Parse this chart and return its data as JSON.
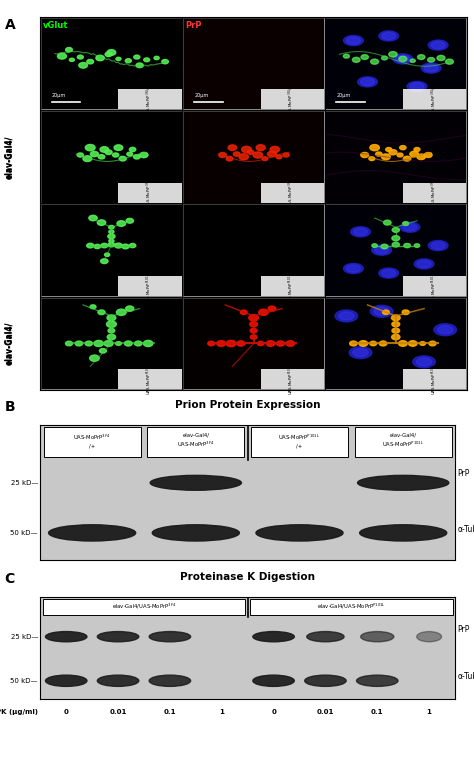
{
  "panel_A_label": "A",
  "panel_B_label": "B",
  "panel_C_label": "C",
  "panel_B_title": "Prion Protein Expression",
  "panel_C_title": "Proteinase K Digestion",
  "scale_bar_text": "20μm",
  "panel_B_col_labels": [
    "UAS-MoPrP$^{3F4}$\n/+",
    "elav-Gal4/\nUAS-MoPrP$^{3F4}$",
    "UAS-MoPrP$^{P101L}$\n/+",
    "elav-Gal4/\nUAS-MoPrP$^{P101L}$"
  ],
  "panel_C_group_labels": [
    "elav-Gal4/UAS-MoPrP$^{3F4}$",
    "elav-Gal4/UAS-MoPrP$^{P101L}$"
  ],
  "panel_C_pk_values": [
    "0",
    "0.01",
    "0.1",
    "1",
    "0",
    "0.01",
    "0.1",
    "1"
  ],
  "panel_C_pk_label": "PK (μg/ml)",
  "bg_color": "#ffffff"
}
